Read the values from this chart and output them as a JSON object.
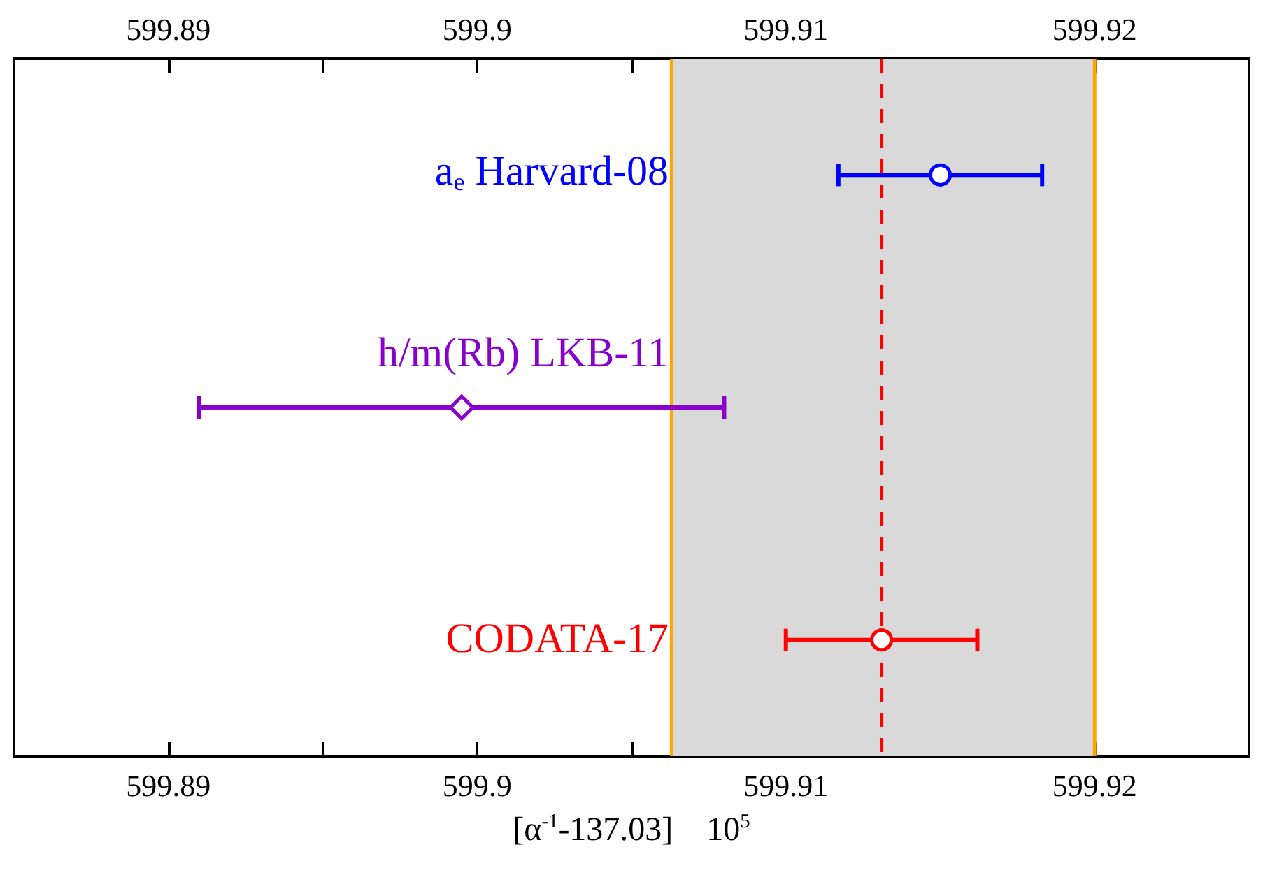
{
  "chart_data": {
    "type": "scatter",
    "orientation": "horizontal",
    "xlabel": "[α$^{-1}$-137.03]    10$^{5}$",
    "categories": [
      null,
      null,
      null
    ],
    "series": [
      {
        "name": "a$_{e}$ Harvard-08",
        "color": "#0000ff",
        "marker": "circle",
        "values": [
          599.915,
          null,
          null
        ],
        "errors": [
          0.0033,
          null,
          null
        ]
      },
      {
        "name": "h/m(Rb) LKB-11",
        "color": "#8800cc",
        "marker": "diamond",
        "values": [
          null,
          599.8995,
          null
        ],
        "errors": [
          null,
          0.0085,
          null
        ]
      },
      {
        "name": "CODATA-17",
        "color": "#ff0000",
        "marker": "circle",
        "values": [
          null,
          null,
          599.9131
        ],
        "errors": [
          null,
          null,
          0.0031
        ]
      }
    ],
    "xlim": [
      599.885,
      599.925
    ],
    "xticks": [
      599.89,
      {
        "value": 599.895,
        "label": null
      },
      599.9,
      {
        "value": 599.905,
        "label": null
      },
      599.91,
      {
        "value": 599.915,
        "label": null
      },
      599.92
    ],
    "x2lim": [
      599.885,
      599.925
    ],
    "x2ticks": [
      599.89,
      {
        "value": 599.895,
        "label": null
      },
      599.9,
      {
        "value": 599.905,
        "label": null
      },
      599.91,
      {
        "value": 599.915,
        "label": null
      },
      599.92
    ],
    "bands": [
      {
        "axis": "x",
        "from": 599.9063,
        "to": 599.92,
        "color": "#d9d9d9"
      }
    ],
    "ref_lines": [
      {
        "axis": "x",
        "value": 599.9063,
        "color": "#ffa500",
        "line_style": "solid"
      },
      {
        "axis": "x",
        "value": 599.92,
        "color": "#ffa500",
        "line_style": "solid"
      },
      {
        "axis": "x",
        "value": 599.9131,
        "color": "#ff0000",
        "line_style": "dashed"
      }
    ],
    "grid": false,
    "legend": false,
    "tick_labels": "x"
  }
}
